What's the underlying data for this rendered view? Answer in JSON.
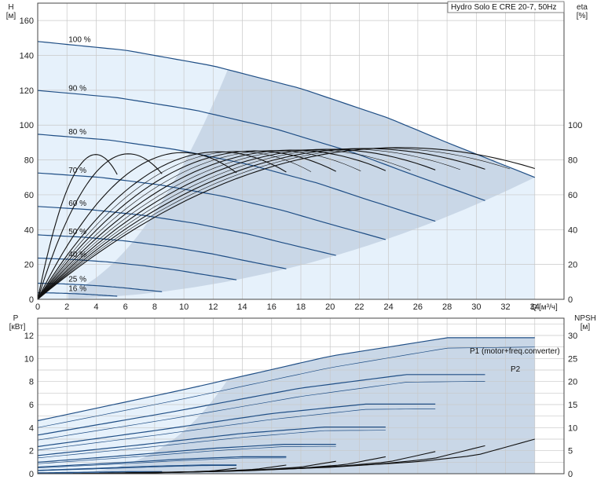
{
  "title": "Hydro Solo E CRE 20-7, 50Hz",
  "chart_data": [
    {
      "type": "line",
      "name": "head-efficiency",
      "ylabel": "H",
      "yunit": "[м]",
      "y2label": "eta",
      "y2unit": "[%]",
      "xlabel": "Q",
      "xunit": "[м³/ч]",
      "xlim": [
        0,
        36
      ],
      "ylim": [
        0,
        170
      ],
      "y2lim": [
        0,
        170
      ],
      "xticks": [
        "0",
        "2",
        "4",
        "6",
        "8",
        "10",
        "12",
        "14",
        "16",
        "18",
        "20",
        "22",
        "24",
        "26",
        "28",
        "30",
        "32",
        "34"
      ],
      "yticks": [
        "0",
        "20",
        "40",
        "60",
        "80",
        "100",
        "120",
        "140",
        "160"
      ],
      "y2ticks": [
        "0",
        "20",
        "40",
        "60",
        "80",
        "100"
      ],
      "grid": true,
      "speed_curves": [
        {
          "label": "100 %",
          "pct": 1.0
        },
        {
          "label": "90 %",
          "pct": 0.9
        },
        {
          "label": "80 %",
          "pct": 0.8
        },
        {
          "label": "70 %",
          "pct": 0.7
        },
        {
          "label": "60 %",
          "pct": 0.6
        },
        {
          "label": "50 %",
          "pct": 0.5
        },
        {
          "label": "40 %",
          "pct": 0.4
        },
        {
          "label": "25 %",
          "pct": 0.25
        },
        {
          "label": "16 %",
          "pct": 0.16
        }
      ],
      "base_curve": {
        "q": [
          0,
          6,
          12,
          18,
          24,
          28,
          34
        ],
        "h": [
          148,
          143,
          134,
          121,
          104,
          90,
          70
        ]
      },
      "operating_limits": {
        "max_flow_at_full_speed": 34,
        "min_line_at_full_speed": 13
      },
      "eta_peak": 75
    },
    {
      "type": "line",
      "name": "power-npsh",
      "ylabel": "P",
      "yunit": "[кВт]",
      "y2label": "NPSH",
      "y2unit": "[м]",
      "xlim": [
        0,
        36
      ],
      "ylim": [
        0,
        13.5
      ],
      "y2lim": [
        0,
        33.75
      ],
      "yticks": [
        "0",
        "2",
        "4",
        "6",
        "8",
        "10",
        "12"
      ],
      "y2ticks": [
        "0",
        "5",
        "10",
        "15",
        "20",
        "25",
        "30"
      ],
      "series_labels": [
        "P1 (motor+freq.converter)",
        "P2"
      ],
      "p1_at_full": {
        "q": [
          0,
          10,
          20,
          28,
          34
        ],
        "p": [
          4.6,
          7.3,
          10.2,
          11.8,
          11.8
        ]
      },
      "p2_at_full": {
        "q": [
          0,
          10,
          20,
          28,
          34
        ],
        "p": [
          4.0,
          6.5,
          9.2,
          10.9,
          11.0
        ]
      },
      "npsh_at_full": {
        "q": [
          6,
          14,
          20,
          26,
          30,
          34
        ],
        "n": [
          0.2,
          0.6,
          1.4,
          2.6,
          4.0,
          7.5
        ]
      }
    }
  ]
}
